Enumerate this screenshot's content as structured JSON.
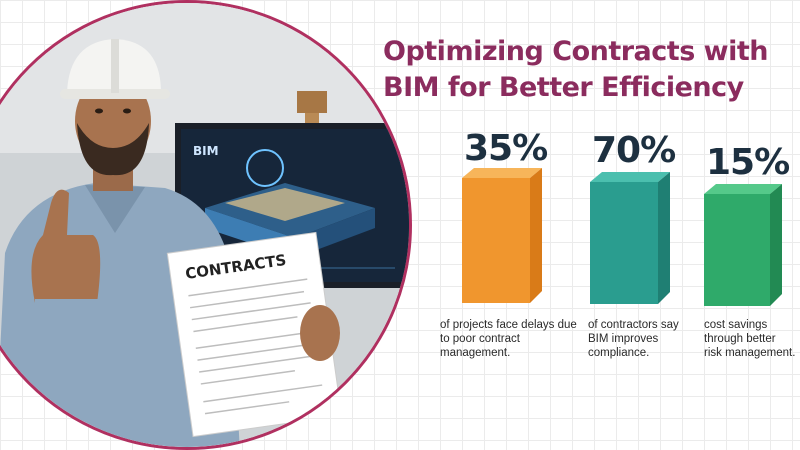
{
  "title_line1": "Optimizing Contracts with",
  "title_line2": "BIM for Better Efficiency",
  "photo": {
    "document_heading": "CONTRACTS",
    "screen_label": "BIM"
  },
  "stats": [
    {
      "value": "35%",
      "caption": "of projects face delays due to poor contract management.",
      "color": "#f0962e"
    },
    {
      "value": "70%",
      "caption": "of contractors say BIM improves compliance.",
      "color": "#2a9d8f"
    },
    {
      "value": "15%",
      "caption": "cost savings through better risk management.",
      "color": "#2faa6a"
    }
  ]
}
